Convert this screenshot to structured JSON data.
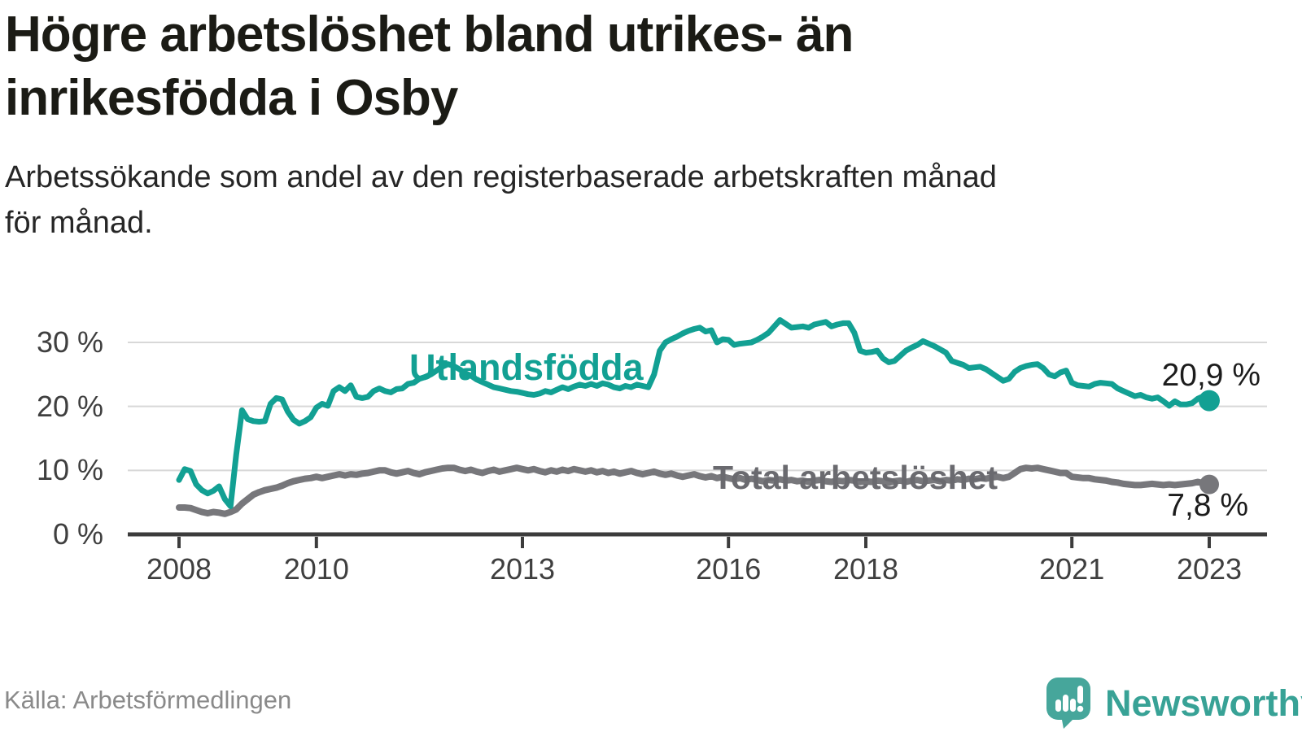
{
  "title": {
    "full": "Högre arbetslöshet bland utrikes- än inrikesfödda i Osby",
    "lines": [
      "Högre arbetslöshet bland utrikes- än",
      "inrikesfödda i Osby"
    ]
  },
  "subtitle": {
    "full": "Arbetssökande som andel av den registerbaserade arbetskraften månad för månad.",
    "lines": [
      "Arbetssökande som andel av den registerbaserade arbetskraften månad",
      "för månad."
    ]
  },
  "source": "Källa: Arbetsförmedlingen",
  "brand": {
    "name": "Newsworthy",
    "logo_icon": "speech-bubble-bar-chart-icon",
    "logo_color": "#46a69b",
    "text_color": "#38a296"
  },
  "colors": {
    "series_foreign": "#12a093",
    "series_total": "#77777b",
    "series_total_label": "#6a6a6f",
    "grid": "#d8d8d8",
    "axis": "#3c3c3c",
    "tick_text": "#3f3f3f",
    "value_text": "#1c1c1c"
  },
  "chart_data": {
    "type": "line",
    "unit": "%",
    "x_start": "2008-01",
    "x_end": "2023-01",
    "frequency": "monthly",
    "x_ticks": [
      2008,
      2010,
      2013,
      2016,
      2018,
      2021,
      2023
    ],
    "y_ticks": [
      {
        "value": 0,
        "label": "0 %"
      },
      {
        "value": 10,
        "label": "10 %"
      },
      {
        "value": 20,
        "label": "20 %"
      },
      {
        "value": 30,
        "label": "30 %"
      }
    ],
    "ylim": [
      0,
      35.5
    ],
    "grid": "horizontal",
    "legend": "inline-labels",
    "series": [
      {
        "name": "Utlandsfödda",
        "end_value": 20.9,
        "end_label": "20,9 %",
        "values": [
          8.5,
          10.2,
          9.9,
          7.8,
          6.9,
          6.4,
          6.8,
          7.5,
          5.5,
          4.4,
          12.5,
          19.4,
          18.0,
          17.7,
          17.6,
          17.7,
          20.4,
          21.3,
          21.1,
          19.2,
          17.9,
          17.3,
          17.7,
          18.3,
          19.8,
          20.4,
          20.1,
          22.4,
          23.0,
          22.4,
          23.3,
          21.5,
          21.3,
          21.5,
          22.4,
          22.8,
          22.4,
          22.2,
          22.7,
          22.8,
          23.5,
          23.7,
          24.3,
          24.6,
          25.0,
          25.6,
          26.2,
          26.6,
          26.3,
          25.8,
          25.2,
          24.8,
          24.2,
          23.8,
          23.4,
          23.0,
          22.8,
          22.6,
          22.4,
          22.3,
          22.1,
          21.9,
          21.8,
          22.0,
          22.4,
          22.2,
          22.6,
          23.0,
          22.7,
          23.1,
          23.4,
          23.2,
          23.5,
          23.2,
          23.6,
          23.4,
          23.0,
          22.8,
          23.2,
          23.0,
          23.4,
          23.2,
          23.0,
          25.0,
          28.7,
          30.0,
          30.5,
          30.9,
          31.4,
          31.8,
          32.1,
          32.3,
          31.7,
          31.9,
          30.0,
          30.5,
          30.4,
          29.6,
          29.8,
          29.9,
          30.0,
          30.4,
          30.9,
          31.5,
          32.5,
          33.5,
          32.9,
          32.3,
          32.4,
          32.5,
          32.3,
          32.8,
          33.0,
          33.2,
          32.5,
          32.8,
          33.0,
          33.0,
          31.5,
          28.7,
          28.4,
          28.5,
          28.7,
          27.5,
          26.9,
          27.1,
          27.9,
          28.7,
          29.2,
          29.6,
          30.2,
          29.8,
          29.4,
          28.9,
          28.4,
          27.1,
          26.8,
          26.5,
          26.0,
          26.1,
          26.2,
          25.8,
          25.2,
          24.6,
          24.0,
          24.3,
          25.4,
          26.0,
          26.3,
          26.5,
          26.6,
          26.0,
          25.0,
          24.7,
          25.3,
          25.6,
          23.7,
          23.3,
          23.2,
          23.1,
          23.5,
          23.7,
          23.6,
          23.5,
          22.8,
          22.4,
          22.0,
          21.6,
          21.8,
          21.4,
          21.2,
          21.4,
          20.8,
          20.1,
          20.8,
          20.3,
          20.3,
          20.5,
          21.2,
          21.6,
          20.9
        ]
      },
      {
        "name": "Total arbetslöshet",
        "end_value": 7.8,
        "end_label": "7,8 %",
        "values": [
          4.2,
          4.2,
          4.1,
          3.8,
          3.5,
          3.3,
          3.5,
          3.4,
          3.2,
          3.5,
          3.9,
          4.8,
          5.5,
          6.2,
          6.6,
          6.9,
          7.1,
          7.3,
          7.6,
          8.0,
          8.3,
          8.5,
          8.7,
          8.8,
          9.0,
          8.8,
          9.0,
          9.2,
          9.4,
          9.2,
          9.4,
          9.3,
          9.5,
          9.6,
          9.8,
          10.0,
          10.0,
          9.7,
          9.5,
          9.7,
          9.9,
          9.6,
          9.4,
          9.7,
          9.9,
          10.1,
          10.3,
          10.4,
          10.4,
          10.1,
          9.9,
          10.1,
          9.8,
          9.6,
          9.9,
          10.1,
          9.8,
          10.0,
          10.2,
          10.4,
          10.2,
          10.0,
          10.2,
          9.9,
          9.7,
          10.0,
          9.8,
          10.1,
          9.9,
          10.2,
          10.0,
          9.8,
          10.0,
          9.7,
          9.9,
          9.6,
          9.8,
          9.5,
          9.7,
          9.9,
          9.6,
          9.4,
          9.6,
          9.8,
          9.5,
          9.3,
          9.5,
          9.2,
          9.0,
          9.2,
          9.4,
          9.1,
          8.9,
          9.1,
          8.8,
          9.0,
          8.8,
          8.6,
          8.8,
          8.5,
          8.7,
          8.5,
          8.3,
          8.5,
          8.4,
          8.6,
          8.4,
          8.5,
          8.3,
          8.4,
          8.2,
          8.4,
          8.5,
          8.3,
          8.2,
          8.4,
          8.3,
          8.5,
          8.4,
          8.2,
          8.3,
          8.2,
          8.4,
          8.3,
          8.1,
          8.3,
          8.4,
          8.2,
          8.4,
          8.5,
          8.3,
          8.4,
          8.5,
          8.3,
          8.5,
          8.4,
          8.6,
          8.5,
          8.7,
          8.6,
          8.8,
          8.7,
          8.9,
          9.0,
          8.8,
          9.0,
          9.6,
          10.2,
          10.4,
          10.3,
          10.4,
          10.2,
          10.0,
          9.8,
          9.6,
          9.6,
          9.0,
          8.9,
          8.8,
          8.8,
          8.6,
          8.5,
          8.4,
          8.2,
          8.1,
          7.9,
          7.8,
          7.7,
          7.7,
          7.8,
          7.9,
          7.8,
          7.7,
          7.8,
          7.7,
          7.8,
          7.9,
          8.0,
          8.2,
          8.0,
          7.8
        ]
      }
    ]
  }
}
